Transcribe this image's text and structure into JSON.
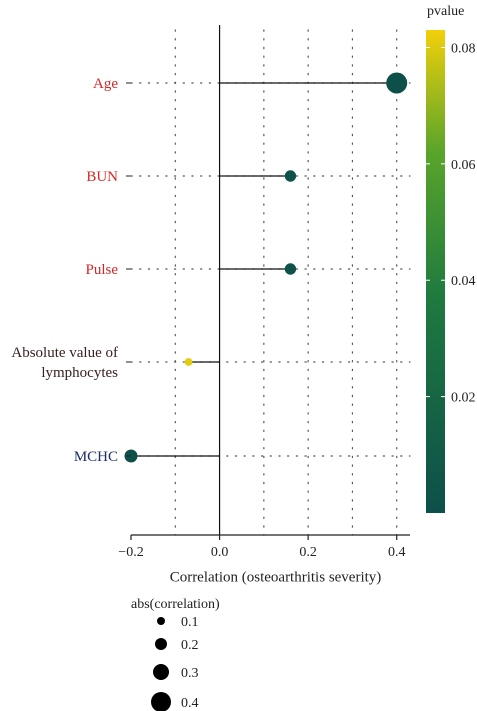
{
  "chart_data": {
    "type": "lollipop",
    "xlabel": "Correlation (osteoarthritis severity)",
    "xlim": [
      -0.2,
      0.43
    ],
    "x_ticks": [
      -0.2,
      0.0,
      0.2,
      0.4
    ],
    "x_tick_labels": [
      "−0.2",
      "0.0",
      "0.2",
      "0.4"
    ],
    "vertical_dotted_grid_at": [
      -0.1,
      0.1,
      0.2,
      0.3,
      0.4
    ],
    "categories": [
      {
        "label_lines": [
          "Age"
        ],
        "label_color": "#d62728",
        "correlation": 0.4,
        "pvalue": 0.0005
      },
      {
        "label_lines": [
          "BUN"
        ],
        "label_color": "#d62728",
        "correlation": 0.16,
        "pvalue": 0.003
      },
      {
        "label_lines": [
          "Pulse"
        ],
        "label_color": "#d62728",
        "correlation": 0.16,
        "pvalue": 0.003
      },
      {
        "label_lines": [
          "Absolute value of",
          "lymphocytes"
        ],
        "label_color": "#3a2020",
        "correlation": -0.07,
        "pvalue": 0.081
      },
      {
        "label_lines": [
          "MCHC"
        ],
        "label_color": "#1f2e6b",
        "correlation": -0.2,
        "pvalue": 0.001
      }
    ],
    "color_legend": {
      "title": "pvalue",
      "min": 0.0,
      "max": 0.083,
      "ticks": [
        0.02,
        0.04,
        0.06,
        0.08
      ],
      "tick_labels": [
        "0.02",
        "0.04",
        "0.06",
        "0.08"
      ],
      "color_low": "#0d4f4a",
      "color_mid": "#2e9a3a",
      "color_high": "#f2d00a"
    },
    "size_legend": {
      "title": "abs(correlation)",
      "values": [
        0.1,
        0.2,
        0.3,
        0.4
      ],
      "labels": [
        "0.1",
        "0.2",
        "0.3",
        "0.4"
      ]
    }
  }
}
